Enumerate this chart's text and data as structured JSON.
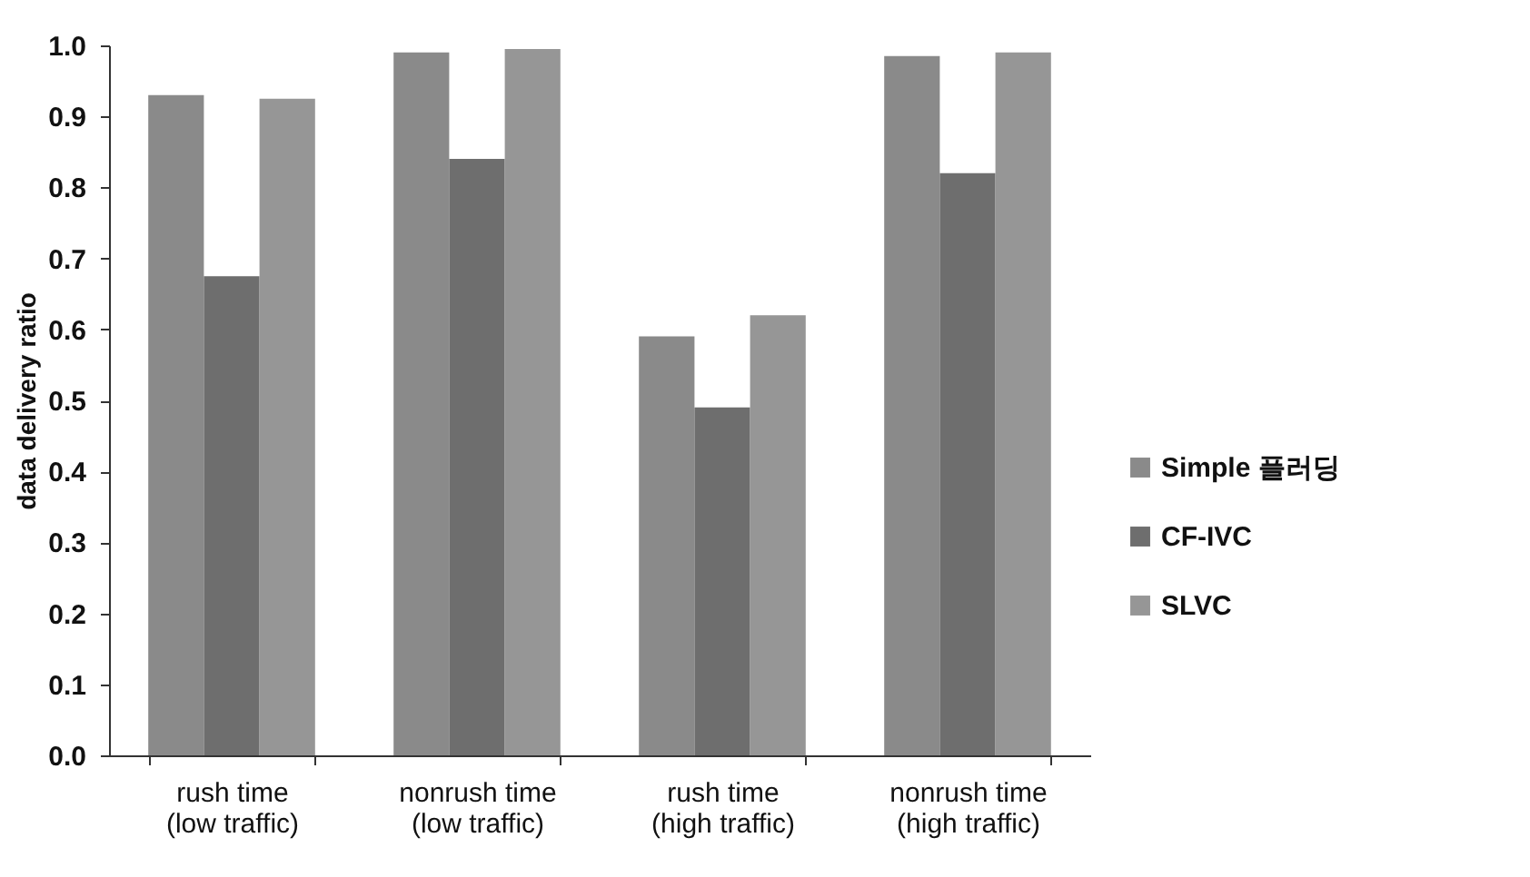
{
  "chart_data": {
    "type": "bar",
    "ylabel": "data delivery ratio",
    "categories": [
      "rush time\n(low traffic)",
      "nonrush time\n(low traffic)",
      "rush time\n(high traffic)",
      "nonrush time\n(high traffic)"
    ],
    "series": [
      {
        "name": "Simple 플러딩",
        "color": "#8a8a8a",
        "values": [
          0.93,
          0.99,
          0.59,
          0.985
        ]
      },
      {
        "name": "CF-IVC",
        "color": "#6e6e6e",
        "values": [
          0.675,
          0.84,
          0.49,
          0.82
        ]
      },
      {
        "name": "SLVC",
        "color": "#969696",
        "values": [
          0.925,
          0.995,
          0.62,
          0.99
        ]
      }
    ],
    "ylim": [
      0,
      1
    ],
    "yticks": [
      {
        "value": 0,
        "label": "0.0"
      },
      0.1,
      0.2,
      0.3,
      0.4,
      0.5,
      0.6,
      0.7,
      0.8,
      0.9,
      {
        "value": 1,
        "label": "1.0"
      }
    ],
    "grid": false,
    "legend": "right"
  }
}
